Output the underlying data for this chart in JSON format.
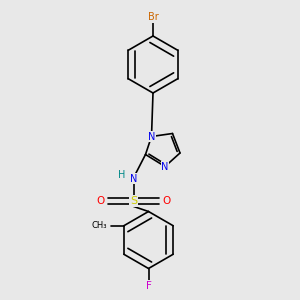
{
  "bg_color": "#e8e8e8",
  "bond_color": "#000000",
  "N_color": "#0000ee",
  "S_color": "#cccc00",
  "O_color": "#ff0000",
  "F_color": "#cc00cc",
  "Br_color": "#cc6600",
  "NH_color": "#008888",
  "H_color": "#008888",
  "fig_w": 3.0,
  "fig_h": 3.0,
  "dpi": 100,
  "xlim": [
    0,
    10
  ],
  "ylim": [
    0,
    10
  ]
}
